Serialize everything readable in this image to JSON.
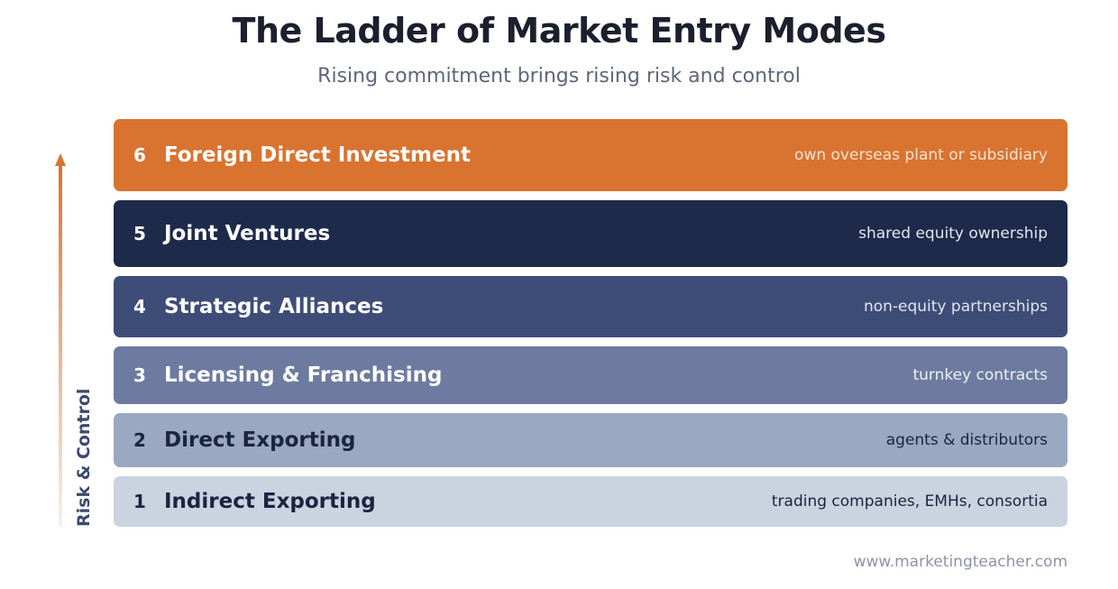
{
  "title": "The Ladder of Market Entry Modes",
  "subtitle": "Rising commitment brings rising risk and control",
  "axis_label": "Risk & Control",
  "footer": "www.marketingteacher.com",
  "rungs": [
    {
      "num": "6",
      "label": "Foreign Direct Investment",
      "desc": "own overseas plant or subsidiary",
      "bg": "#d97330",
      "fg": "#ffffff",
      "desc_fg": "#fbe3d2"
    },
    {
      "num": "5",
      "label": "Joint Ventures",
      "desc": "shared equity ownership",
      "bg": "#1e2a4a",
      "fg": "#ffffff",
      "desc_fg": "#e1e5ee"
    },
    {
      "num": "4",
      "label": "Strategic Alliances",
      "desc": "non-equity partnerships",
      "bg": "#3e4d78",
      "fg": "#ffffff",
      "desc_fg": "#e1e5ee"
    },
    {
      "num": "3",
      "label": "Licensing & Franchising",
      "desc": "turnkey contracts",
      "bg": "#6c7b9f",
      "fg": "#ffffff",
      "desc_fg": "#eef0f5"
    },
    {
      "num": "2",
      "label": "Direct Exporting",
      "desc": "agents & distributors",
      "bg": "#9aa8c2",
      "fg": "#1b2440",
      "desc_fg": "#1b2440"
    },
    {
      "num": "1",
      "label": "Indirect Exporting",
      "desc": "trading companies, EMHs, consortia",
      "bg": "#cbd2e0",
      "fg": "#1b2440",
      "desc_fg": "#1b2440"
    }
  ],
  "colors": {
    "arrow_top": "#d97330",
    "arrow_bottom": "#f6f0ec"
  }
}
